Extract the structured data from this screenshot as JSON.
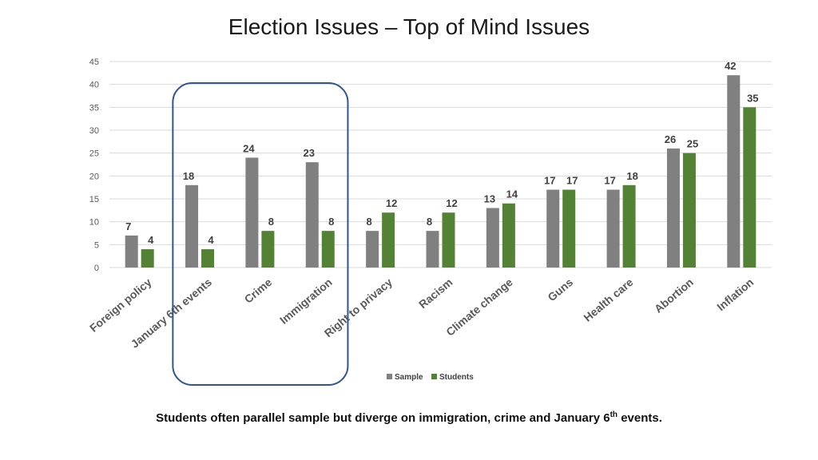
{
  "title": "Election Issues – Top of Mind Issues",
  "caption": {
    "main": "Students often parallel sample but diverge on immigration, crime and January 6",
    "sup": "th",
    "end": " events."
  },
  "colors": {
    "sample": "#808080",
    "students": "#548235",
    "highlight": "#2f5597",
    "grid": "#d9d9d9"
  },
  "chart_data": {
    "type": "bar",
    "title": "Election Issues – Top of Mind Issues",
    "categories": [
      "Foreign policy",
      "January 6th events",
      "Crime",
      "Immigration",
      "Right to privacy",
      "Racism",
      "Climate change",
      "Guns",
      "Health care",
      "Abortion",
      "Inflation"
    ],
    "series": [
      {
        "name": "Sample",
        "values": [
          7,
          18,
          24,
          23,
          8,
          8,
          13,
          17,
          17,
          26,
          42
        ]
      },
      {
        "name": "Students",
        "values": [
          4,
          4,
          8,
          8,
          12,
          12,
          14,
          17,
          18,
          25,
          35
        ]
      }
    ],
    "ylim": [
      0,
      45
    ],
    "yticks": [
      0,
      5,
      10,
      15,
      20,
      25,
      30,
      35,
      40,
      45
    ],
    "grid": true,
    "legend": "bottom-center",
    "highlighted_categories": [
      "January 6th events",
      "Crime",
      "Immigration"
    ],
    "xlabel": "",
    "ylabel": ""
  }
}
